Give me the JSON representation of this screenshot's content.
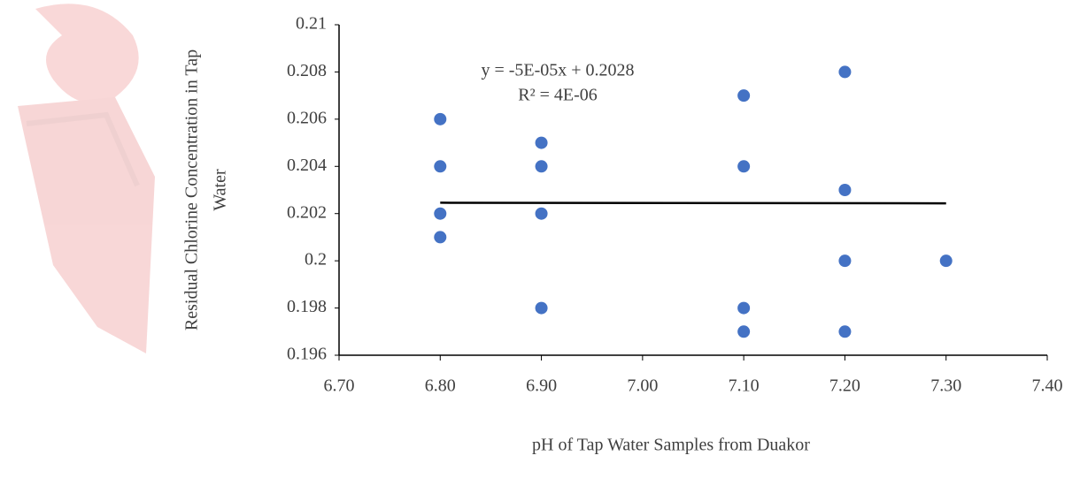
{
  "chart_data": {
    "type": "scatter",
    "xlabel": "pH of Tap Water Samples from Duakor",
    "ylabel": [
      "Residual Chlorine Concentration in Tap",
      "Water"
    ],
    "series": [
      {
        "color": "#4472c4",
        "x": [
          6.8,
          6.8,
          6.8,
          6.8,
          6.9,
          6.9,
          6.9,
          6.9,
          7.1,
          7.1,
          7.1,
          7.1,
          7.2,
          7.2,
          7.2,
          7.2,
          7.3
        ],
        "values": [
          0.206,
          0.204,
          0.202,
          0.201,
          0.205,
          0.204,
          0.202,
          0.198,
          0.207,
          0.204,
          0.198,
          0.197,
          0.208,
          0.203,
          0.2,
          0.197,
          0.2
        ]
      }
    ],
    "trendline": {
      "equation": "y = -5E-05x + 0.2028",
      "r2": "R² = 4E-06",
      "slope": -5e-05,
      "intercept": 0.2028,
      "color": "#000000"
    },
    "xlim": [
      6.7,
      7.4
    ],
    "xticks": [
      {
        "value": 6.7,
        "label": "6.70"
      },
      {
        "value": 6.8,
        "label": "6.80"
      },
      {
        "value": 6.9,
        "label": "6.90"
      },
      {
        "value": 7.0,
        "label": "7.00"
      },
      {
        "value": 7.1,
        "label": "7.10"
      },
      {
        "value": 7.2,
        "label": "7.20"
      },
      {
        "value": 7.3,
        "label": "7.30"
      },
      {
        "value": 7.4,
        "label": "7.40"
      }
    ],
    "ylim": [
      0.196,
      0.21
    ],
    "yticks": [
      0.196,
      0.198,
      0.2,
      0.202,
      0.204,
      0.206,
      0.208,
      0.21
    ],
    "grid": false
  }
}
